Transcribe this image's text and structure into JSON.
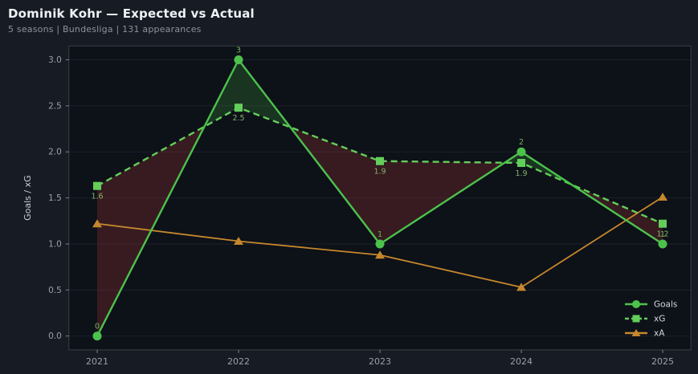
{
  "header": {
    "title": "Dominik Kohr — Expected vs Actual",
    "subtitle": "5 seasons | Bundesliga | 131 appearances"
  },
  "chart_data": {
    "type": "line",
    "title": "Dominik Kohr — Expected vs Actual",
    "subtitle": "5 seasons | Bundesliga | 131 appearances",
    "x": [
      2021,
      2022,
      2023,
      2024,
      2025
    ],
    "xtick_labels": [
      "2021",
      "2022",
      "2023",
      "2024",
      "2025"
    ],
    "xlabel": "",
    "ylabel": "Goals / xG",
    "yticks": [
      0.0,
      0.5,
      1.0,
      1.5,
      2.0,
      2.5,
      3.0
    ],
    "ytick_labels": [
      "0.0",
      "0.5",
      "1.0",
      "1.5",
      "2.0",
      "2.5",
      "3.0"
    ],
    "xlim": [
      2020.8,
      2025.2
    ],
    "ylim": [
      -0.15,
      3.15
    ],
    "grid": "horizontal",
    "legend_position": "lower right",
    "series": [
      {
        "name": "Goals",
        "marker": "circle",
        "line_style": "solid",
        "color": "#4cc24c",
        "label_color": "#6fb85f",
        "values": [
          0,
          3,
          1,
          2,
          1
        ],
        "point_labels": [
          "0",
          "3",
          "1",
          "2",
          "1"
        ],
        "label_side": "above"
      },
      {
        "name": "xG",
        "marker": "square",
        "line_style": "dashed",
        "color": "#63ce5a",
        "label_color": "#87b469",
        "values": [
          1.63,
          2.48,
          1.9,
          1.88,
          1.22
        ],
        "point_labels": [
          "1.6",
          "2.5",
          "1.9",
          "1.9",
          "1.2"
        ],
        "label_side": "below"
      },
      {
        "name": "xA",
        "marker": "triangle",
        "line_style": "solid",
        "color": "#c5872c",
        "label_color": "#c5872c",
        "values": [
          1.22,
          1.03,
          0.88,
          0.53,
          1.51
        ],
        "point_labels": [],
        "label_side": "none"
      }
    ],
    "fill_between": {
      "series_a": "Goals",
      "series_b": "xG",
      "above_color": "#3f9b3f",
      "below_color": "#b03a3a",
      "opacity": 0.26
    }
  },
  "colors": {
    "figure_bg": "#161b24",
    "axes_bg": "#0d1118",
    "grid": "#1b212c",
    "spine": "#3a4049",
    "tick": "#7d838c",
    "tick_label": "#9aa0a8",
    "axis_label": "#c9ced4",
    "legend_text": "#d4d7db"
  }
}
